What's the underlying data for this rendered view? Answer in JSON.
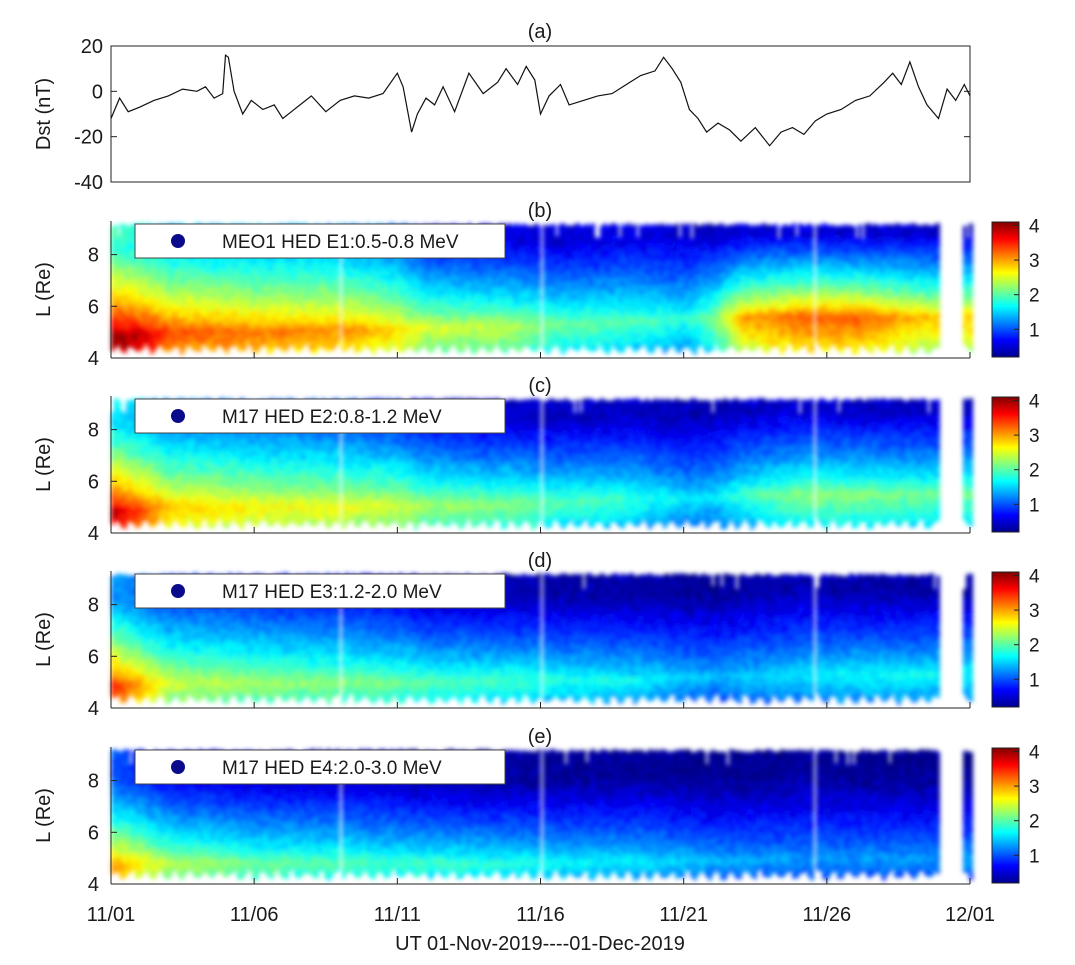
{
  "figure": {
    "xlabel": "UT 01-Nov-2019----01-Dec-2019",
    "x_tick_labels": [
      "11/01",
      "11/06",
      "11/11",
      "11/16",
      "11/21",
      "11/26",
      "12/01"
    ],
    "x_tick_days": [
      0,
      5,
      10,
      15,
      20,
      25,
      30
    ],
    "x_range_days": [
      0,
      30
    ]
  },
  "colorbar": {
    "colormap": "jet",
    "range": [
      0.2,
      4.1
    ],
    "tick_labels": [
      "1",
      "2",
      "3",
      "4"
    ],
    "tick_values": [
      1,
      2,
      3,
      4
    ]
  },
  "chart_data": [
    {
      "type": "line",
      "panel_label": "(a)",
      "ylabel": "Dst (nT)",
      "ylim": [
        -40,
        20
      ],
      "y_tick_labels": [
        "20",
        "0",
        "-20",
        "-40"
      ],
      "y_tick_values": [
        20,
        0,
        -20,
        -40
      ],
      "color": "#111111",
      "x_days": [
        0,
        0.3,
        0.6,
        1.0,
        1.5,
        2.0,
        2.5,
        3.0,
        3.3,
        3.6,
        3.9,
        4.0,
        4.1,
        4.3,
        4.6,
        4.9,
        5.3,
        5.7,
        6.0,
        6.3,
        6.6,
        7.0,
        7.5,
        8.0,
        8.5,
        9.0,
        9.5,
        10.0,
        10.2,
        10.5,
        10.7,
        11.0,
        11.3,
        11.6,
        12.0,
        12.5,
        13.0,
        13.5,
        13.8,
        14.2,
        14.5,
        14.8,
        15.0,
        15.3,
        15.7,
        16.0,
        16.5,
        17.0,
        17.5,
        18.0,
        18.5,
        19.0,
        19.3,
        19.6,
        19.9,
        20.2,
        20.5,
        20.8,
        21.2,
        21.6,
        22.0,
        22.5,
        23.0,
        23.4,
        23.8,
        24.2,
        24.6,
        25.0,
        25.5,
        26.0,
        26.5,
        27.0,
        27.3,
        27.6,
        27.9,
        28.2,
        28.5,
        28.9,
        29.2,
        29.5,
        29.8,
        30.0
      ],
      "y_nT": [
        -12,
        -3,
        -9,
        -7,
        -4,
        -2,
        1,
        0,
        2,
        -3,
        -1,
        16,
        15,
        0,
        -10,
        -4,
        -8,
        -6,
        -12,
        -9,
        -6,
        -2,
        -9,
        -4,
        -2,
        -3,
        -1,
        8,
        2,
        -18,
        -10,
        -3,
        -6,
        2,
        -9,
        8,
        -1,
        4,
        10,
        3,
        11,
        5,
        -10,
        -2,
        3,
        -6,
        -4,
        -2,
        -1,
        3,
        7,
        9,
        15,
        10,
        4,
        -8,
        -12,
        -18,
        -14,
        -17,
        -22,
        -16,
        -24,
        -18,
        -16,
        -19,
        -13,
        -10,
        -8,
        -4,
        -2,
        4,
        8,
        3,
        13,
        2,
        -6,
        -12,
        1,
        -4,
        3,
        -2
      ]
    },
    {
      "type": "scatter",
      "panel_label": "(b)",
      "legend": "MEO1 HED E1:0.5-0.8 MeV",
      "legend_position": "top-left",
      "ylabel": "L (Re)",
      "ylim": [
        4,
        9.3
      ],
      "y_tick_labels": [
        "8",
        "6",
        "4"
      ],
      "y_tick_values": [
        8,
        6,
        4
      ],
      "data_gaps_days": [
        [
          7.9,
          8.05
        ],
        [
          14.9,
          15.02
        ],
        [
          24.45,
          24.55
        ],
        [
          28.9,
          29.7
        ]
      ],
      "profile_days": [
        0,
        1,
        2,
        5,
        8,
        10,
        11,
        14,
        15.5,
        18,
        20,
        21,
        22,
        24,
        26,
        28.5
      ],
      "peak_value": [
        4.1,
        3.9,
        3.4,
        3.2,
        3.1,
        2.8,
        2.5,
        2.4,
        2.1,
        2.0,
        1.8,
        2.2,
        3.0,
        3.3,
        3.3,
        2.9
      ],
      "peak_L": [
        4.8,
        4.9,
        5.0,
        5.0,
        5.1,
        5.1,
        5.2,
        5.2,
        5.3,
        5.4,
        5.5,
        5.6,
        5.6,
        5.6,
        5.6,
        5.6
      ],
      "outer_value": [
        1.9,
        1.7,
        1.5,
        1.4,
        1.3,
        1.1,
        0.7,
        0.6,
        0.5,
        0.6,
        0.5,
        0.45,
        0.5,
        0.55,
        0.5,
        0.5
      ]
    },
    {
      "type": "scatter",
      "panel_label": "(c)",
      "legend": "M17 HED E2:0.8-1.2 MeV",
      "legend_position": "top-left",
      "ylabel": "L (Re)",
      "ylim": [
        4,
        9.3
      ],
      "y_tick_labels": [
        "8",
        "6",
        "4"
      ],
      "y_tick_values": [
        8,
        6,
        4
      ],
      "data_gaps_days": [
        [
          7.9,
          8.05
        ],
        [
          14.9,
          15.02
        ],
        [
          24.45,
          24.55
        ],
        [
          28.9,
          29.7
        ]
      ],
      "profile_days": [
        0,
        1,
        2,
        5,
        8,
        10,
        11,
        14,
        15.5,
        18,
        20,
        21,
        22,
        24,
        26,
        28.5
      ],
      "peak_value": [
        3.9,
        3.4,
        2.9,
        2.7,
        2.6,
        2.5,
        2.3,
        2.2,
        2.0,
        1.9,
        1.6,
        1.6,
        1.9,
        2.2,
        2.2,
        2.1
      ],
      "peak_L": [
        4.8,
        4.9,
        5.0,
        5.0,
        5.0,
        5.1,
        5.1,
        5.1,
        5.2,
        5.3,
        5.3,
        5.4,
        5.5,
        5.5,
        5.5,
        5.5
      ],
      "outer_value": [
        1.6,
        1.4,
        1.2,
        1.1,
        1.0,
        0.8,
        0.6,
        0.5,
        0.45,
        0.45,
        0.4,
        0.4,
        0.45,
        0.5,
        0.45,
        0.45
      ]
    },
    {
      "type": "scatter",
      "panel_label": "(d)",
      "legend": "M17 HED E3:1.2-2.0 MeV",
      "legend_position": "top-left",
      "ylabel": "L (Re)",
      "ylim": [
        4,
        9.3
      ],
      "y_tick_labels": [
        "8",
        "6",
        "4"
      ],
      "y_tick_values": [
        8,
        6,
        4
      ],
      "data_gaps_days": [
        [
          7.9,
          8.05
        ],
        [
          14.9,
          15.02
        ],
        [
          24.45,
          24.55
        ],
        [
          28.9,
          29.7
        ]
      ],
      "profile_days": [
        0,
        1,
        2,
        5,
        8,
        10,
        11,
        14,
        15.5,
        18,
        20,
        21,
        22,
        24,
        26,
        28.5
      ],
      "peak_value": [
        3.6,
        3.0,
        2.5,
        2.3,
        2.2,
        2.1,
        2.0,
        1.9,
        1.8,
        1.7,
        1.5,
        1.4,
        1.5,
        1.6,
        1.7,
        1.7
      ],
      "peak_L": [
        4.8,
        4.9,
        5.0,
        5.0,
        5.0,
        5.0,
        5.0,
        5.1,
        5.1,
        5.1,
        5.2,
        5.2,
        5.2,
        5.3,
        5.3,
        5.3
      ],
      "outer_value": [
        1.3,
        1.1,
        0.9,
        0.8,
        0.7,
        0.6,
        0.45,
        0.4,
        0.35,
        0.35,
        0.3,
        0.3,
        0.35,
        0.4,
        0.35,
        0.35
      ]
    },
    {
      "type": "scatter",
      "panel_label": "(e)",
      "legend": "M17 HED E4:2.0-3.0 MeV",
      "legend_position": "top-left",
      "ylabel": "L (Re)",
      "ylim": [
        4,
        9.3
      ],
      "y_tick_labels": [
        "8",
        "6",
        "4"
      ],
      "y_tick_values": [
        8,
        6,
        4
      ],
      "data_gaps_days": [
        [
          7.9,
          8.05
        ],
        [
          14.9,
          15.02
        ],
        [
          24.45,
          24.55
        ],
        [
          28.9,
          29.7
        ]
      ],
      "profile_days": [
        0,
        1,
        2,
        5,
        8,
        10,
        11,
        14,
        15.5,
        18,
        20,
        21,
        22,
        24,
        26,
        28.5
      ],
      "peak_value": [
        3.1,
        2.7,
        2.4,
        2.1,
        2.0,
        1.9,
        1.9,
        1.8,
        1.7,
        1.6,
        1.5,
        1.4,
        1.35,
        1.3,
        1.3,
        1.3
      ],
      "peak_L": [
        4.7,
        4.8,
        4.8,
        4.8,
        4.8,
        4.8,
        4.8,
        4.8,
        4.8,
        4.9,
        4.9,
        4.9,
        4.9,
        5.0,
        5.0,
        5.0
      ],
      "outer_value": [
        1.0,
        0.8,
        0.6,
        0.5,
        0.45,
        0.4,
        0.35,
        0.3,
        0.3,
        0.3,
        0.25,
        0.25,
        0.25,
        0.3,
        0.25,
        0.25
      ]
    }
  ]
}
